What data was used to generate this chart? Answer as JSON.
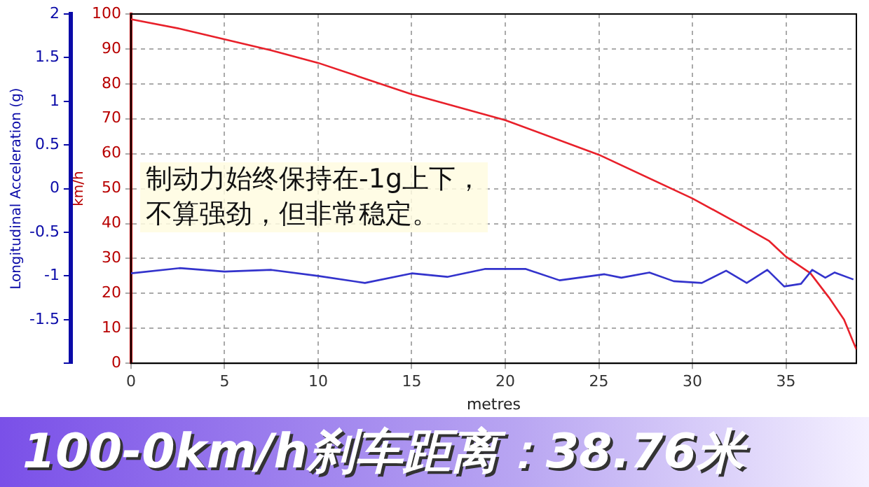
{
  "chart_data": {
    "type": "line",
    "title": "100-0km/h刹车距离：38.76米",
    "xlabel": "metres",
    "ylabel": "Longitudinal Acceleration (g)",
    "y2label": "km/h",
    "annotations": [
      "制动力始终保持在-1g上下，",
      "不算强劲，但非常稳定。"
    ],
    "series": [
      {
        "color": "#3333cc",
        "axis": "y",
        "x": [
          0,
          2.6,
          5,
          7.5,
          10,
          12.5,
          15,
          16.9,
          18.9,
          21.1,
          22.9,
          25.3,
          26.2,
          27.7,
          29,
          30.5,
          31.8,
          32.9,
          34,
          34.9,
          35.8,
          36.4,
          37.1,
          37.6,
          38.6
        ],
        "values": [
          -0.97,
          -0.91,
          -0.95,
          -0.93,
          -1.0,
          -1.08,
          -0.97,
          -1.01,
          -0.92,
          -0.92,
          -1.05,
          -0.98,
          -1.02,
          -0.96,
          -1.06,
          -1.08,
          -0.94,
          -1.08,
          -0.93,
          -1.12,
          -1.09,
          -0.93,
          -1.02,
          -0.96,
          -1.04
        ]
      },
      {
        "color": "#e8202a",
        "axis": "y2",
        "x": [
          0,
          2.6,
          7.5,
          10,
          15,
          20,
          25,
          30,
          32.6,
          34.1,
          35,
          36.3,
          37.3,
          38.1,
          38.6,
          38.76
        ],
        "values": [
          98.5,
          95.8,
          89.6,
          86,
          77,
          69.6,
          59.7,
          47.2,
          39.6,
          35,
          30.5,
          25.8,
          18.8,
          12.5,
          6,
          4
        ]
      }
    ],
    "xlim": [
      0,
      38.76
    ],
    "xticks": [
      0,
      5,
      10,
      15,
      20,
      25,
      30,
      35
    ],
    "ylim": [
      -2,
      2
    ],
    "yticks": [
      {
        "value": -2,
        "label": null
      },
      -1.5,
      -1,
      -0.5,
      0,
      0.5,
      1,
      1.5,
      2
    ],
    "y2lim": [
      0,
      100
    ],
    "y2ticks": [
      0,
      10,
      20,
      30,
      40,
      50,
      60,
      70,
      80,
      90,
      100
    ],
    "grid": true,
    "marker": "none"
  }
}
